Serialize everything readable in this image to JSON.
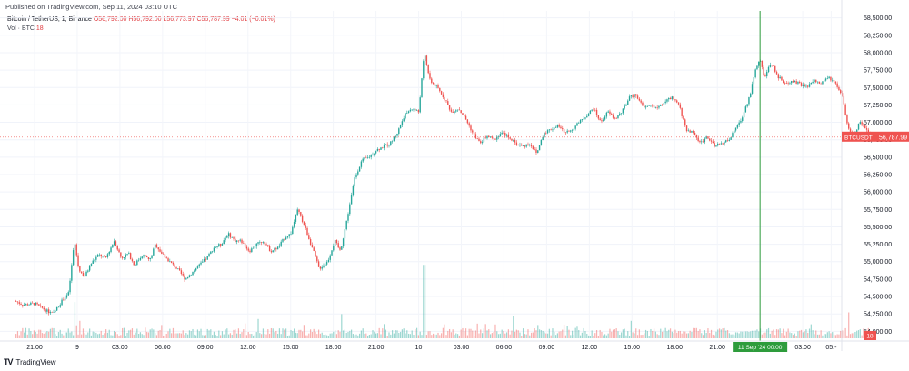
{
  "published_note": "Published on TradingView.com, Sep 11, 2024 03:10 UTC",
  "header": {
    "symbol": "Bitcoin / TetherUS, 1, Binance",
    "ohlc": "O56,792.00 H56,792.00 L56,773.97 C56,787.99 −4.01 (−0.01%)",
    "vol_label": "Vol · BTC",
    "vol_value": "18"
  },
  "price_tag": {
    "symbol": "BTCUSDT",
    "price": "56,787.99"
  },
  "volume_tag": "18",
  "crosshair_label": "11 Sep '24   00:00",
  "footer": {
    "brand_mark": "TV",
    "brand": "TradingView"
  },
  "colors": {
    "up": "#26a69a",
    "down": "#ef5350",
    "crosshair": "#2e9c3c",
    "price_line": "#ef5350"
  },
  "chart_data": {
    "type": "candlestick",
    "title": "",
    "xlabel": "",
    "ylabel": "",
    "ylim": [
      53900,
      58600
    ],
    "y_ticks": [
      "58,500.00",
      "58,250.00",
      "58,000.00",
      "57,750.00",
      "57,500.00",
      "57,250.00",
      "57,000.00",
      "56,750.00",
      "56,500.00",
      "56,250.00",
      "56,000.00",
      "55,750.00",
      "55,500.00",
      "55,250.00",
      "55,000.00",
      "54,750.00",
      "54,500.00",
      "54,250.00",
      "54,000.00"
    ],
    "y_tick_values": [
      58500,
      58250,
      58000,
      57750,
      57500,
      57250,
      57000,
      56750,
      56500,
      56250,
      56000,
      55750,
      55500,
      55250,
      55000,
      54750,
      54500,
      54250,
      54000
    ],
    "x_ticks": [
      "21:00",
      "9",
      "03:00",
      "06:00",
      "09:00",
      "12:00",
      "15:00",
      "18:00",
      "21:00",
      "10",
      "03:00",
      "06:00",
      "09:00",
      "12:00",
      "15:00",
      "18:00",
      "21:00",
      "11 Sep '24",
      "03:00",
      "05:-"
    ],
    "x_tick_hours": [
      0,
      3,
      6,
      9,
      12,
      15,
      18,
      21,
      24,
      27,
      30,
      33,
      36,
      39,
      42,
      45,
      48,
      51,
      54,
      56
    ],
    "last_price": 56787.99,
    "crosshair_hour": 51,
    "close_path": [
      [
        -1.3,
        54430
      ],
      [
        -0.8,
        54380
      ],
      [
        0,
        54400
      ],
      [
        0.8,
        54300
      ],
      [
        1.3,
        54250
      ],
      [
        1.9,
        54430
      ],
      [
        2.4,
        54550
      ],
      [
        2.8,
        55300
      ],
      [
        3.1,
        54900
      ],
      [
        3.5,
        54780
      ],
      [
        4.0,
        54980
      ],
      [
        4.5,
        55100
      ],
      [
        5.0,
        55050
      ],
      [
        5.6,
        55300
      ],
      [
        6.1,
        55050
      ],
      [
        6.6,
        55120
      ],
      [
        7.0,
        54950
      ],
      [
        7.6,
        55100
      ],
      [
        8.1,
        55020
      ],
      [
        8.5,
        55250
      ],
      [
        9.0,
        55100
      ],
      [
        9.6,
        54980
      ],
      [
        10.1,
        54880
      ],
      [
        10.6,
        54750
      ],
      [
        11.1,
        54850
      ],
      [
        11.6,
        54950
      ],
      [
        12.1,
        55050
      ],
      [
        12.6,
        55200
      ],
      [
        13.1,
        55250
      ],
      [
        13.6,
        55400
      ],
      [
        14.1,
        55300
      ],
      [
        14.5,
        55300
      ],
      [
        15.1,
        55150
      ],
      [
        15.6,
        55250
      ],
      [
        16.1,
        55300
      ],
      [
        16.6,
        55150
      ],
      [
        17.1,
        55200
      ],
      [
        17.6,
        55350
      ],
      [
        18.0,
        55400
      ],
      [
        18.5,
        55750
      ],
      [
        19.0,
        55500
      ],
      [
        19.6,
        55150
      ],
      [
        20.0,
        54900
      ],
      [
        20.6,
        55000
      ],
      [
        21.1,
        55300
      ],
      [
        21.5,
        55150
      ],
      [
        22.0,
        55650
      ],
      [
        22.5,
        56200
      ],
      [
        23.0,
        56450
      ],
      [
        23.5,
        56500
      ],
      [
        24.0,
        56600
      ],
      [
        24.5,
        56650
      ],
      [
        25.0,
        56700
      ],
      [
        25.5,
        56850
      ],
      [
        26.0,
        57100
      ],
      [
        26.5,
        57200
      ],
      [
        27.0,
        57150
      ],
      [
        27.4,
        58000
      ],
      [
        27.8,
        57600
      ],
      [
        28.3,
        57500
      ],
      [
        28.8,
        57350
      ],
      [
        29.3,
        57150
      ],
      [
        29.8,
        57200
      ],
      [
        30.3,
        57050
      ],
      [
        30.8,
        56850
      ],
      [
        31.3,
        56700
      ],
      [
        31.8,
        56800
      ],
      [
        32.3,
        56750
      ],
      [
        32.8,
        56850
      ],
      [
        33.3,
        56800
      ],
      [
        33.8,
        56700
      ],
      [
        34.3,
        56650
      ],
      [
        34.8,
        56700
      ],
      [
        35.3,
        56550
      ],
      [
        35.8,
        56850
      ],
      [
        36.3,
        56900
      ],
      [
        36.8,
        56950
      ],
      [
        37.3,
        56850
      ],
      [
        37.8,
        56900
      ],
      [
        38.3,
        57000
      ],
      [
        38.8,
        57100
      ],
      [
        39.3,
        57200
      ],
      [
        39.8,
        57000
      ],
      [
        40.3,
        57150
      ],
      [
        40.8,
        57050
      ],
      [
        41.3,
        57150
      ],
      [
        41.8,
        57350
      ],
      [
        42.3,
        57400
      ],
      [
        42.8,
        57200
      ],
      [
        43.3,
        57250
      ],
      [
        43.8,
        57200
      ],
      [
        44.3,
        57300
      ],
      [
        44.8,
        57350
      ],
      [
        45.3,
        57250
      ],
      [
        45.8,
        56900
      ],
      [
        46.3,
        56850
      ],
      [
        46.8,
        56700
      ],
      [
        47.3,
        56800
      ],
      [
        47.8,
        56650
      ],
      [
        48.3,
        56700
      ],
      [
        48.8,
        56750
      ],
      [
        49.3,
        56900
      ],
      [
        49.8,
        57100
      ],
      [
        50.3,
        57400
      ],
      [
        50.6,
        57700
      ],
      [
        51.0,
        57900
      ],
      [
        51.3,
        57650
      ],
      [
        51.8,
        57850
      ],
      [
        52.3,
        57650
      ],
      [
        52.8,
        57550
      ],
      [
        53.3,
        57600
      ],
      [
        53.8,
        57550
      ],
      [
        54.3,
        57500
      ],
      [
        54.8,
        57600
      ],
      [
        55.3,
        57550
      ],
      [
        55.8,
        57650
      ],
      [
        56.3,
        57550
      ],
      [
        56.8,
        57350
      ],
      [
        57.2,
        56900
      ],
      [
        57.6,
        56800
      ],
      [
        58.0,
        57000
      ],
      [
        58.4,
        56900
      ],
      [
        58.8,
        56790
      ]
    ],
    "volume_spike_hours": [
      2.8,
      27.4,
      21.6,
      57.2
    ],
    "volume_spike_levels": [
      0.42,
      0.85,
      0.28,
      0.3
    ]
  }
}
